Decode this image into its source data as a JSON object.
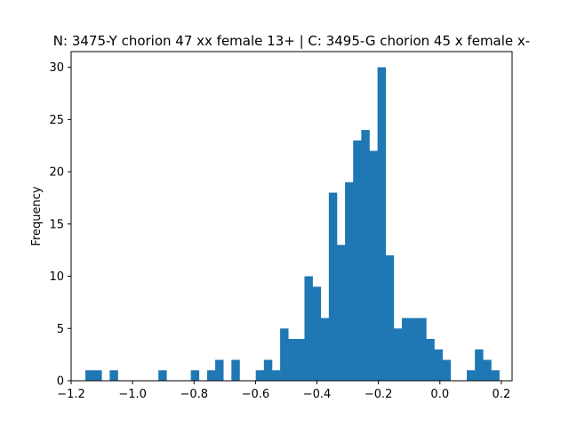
{
  "chart_data": {
    "type": "bar",
    "title": "N: 3475-Y chorion 47 xx female 13+ | C: 3495-G chorion 45 x female x-",
    "xlabel": "",
    "ylabel": "Frequency",
    "xlim": [
      -1.2,
      0.235
    ],
    "ylim": [
      0,
      31.5
    ],
    "xticks": [
      -1.2,
      -1.0,
      -0.8,
      -0.6,
      -0.4,
      -0.2,
      0.0,
      0.2
    ],
    "xtick_labels": [
      "−1.2",
      "−1.0",
      "−0.8",
      "−0.6",
      "−0.4",
      "−0.2",
      "0.0",
      "0.2"
    ],
    "yticks": [
      0,
      5,
      10,
      15,
      20,
      25,
      30
    ],
    "ytick_labels": [
      "0",
      "5",
      "10",
      "15",
      "20",
      "25",
      "30"
    ],
    "bin_start": -1.1537,
    "bin_width": 0.02641,
    "values": [
      1,
      1,
      0,
      1,
      0,
      0,
      0,
      0,
      0,
      1,
      0,
      0,
      0,
      1,
      0,
      1,
      2,
      0,
      2,
      0,
      0,
      1,
      2,
      1,
      5,
      4,
      4,
      10,
      9,
      6,
      18,
      13,
      19,
      23,
      24,
      22,
      30,
      12,
      5,
      6,
      6,
      6,
      4,
      3,
      2,
      0,
      0,
      1,
      3,
      2,
      1
    ],
    "color": "#1f77b4",
    "grid": false,
    "legend": "none"
  }
}
